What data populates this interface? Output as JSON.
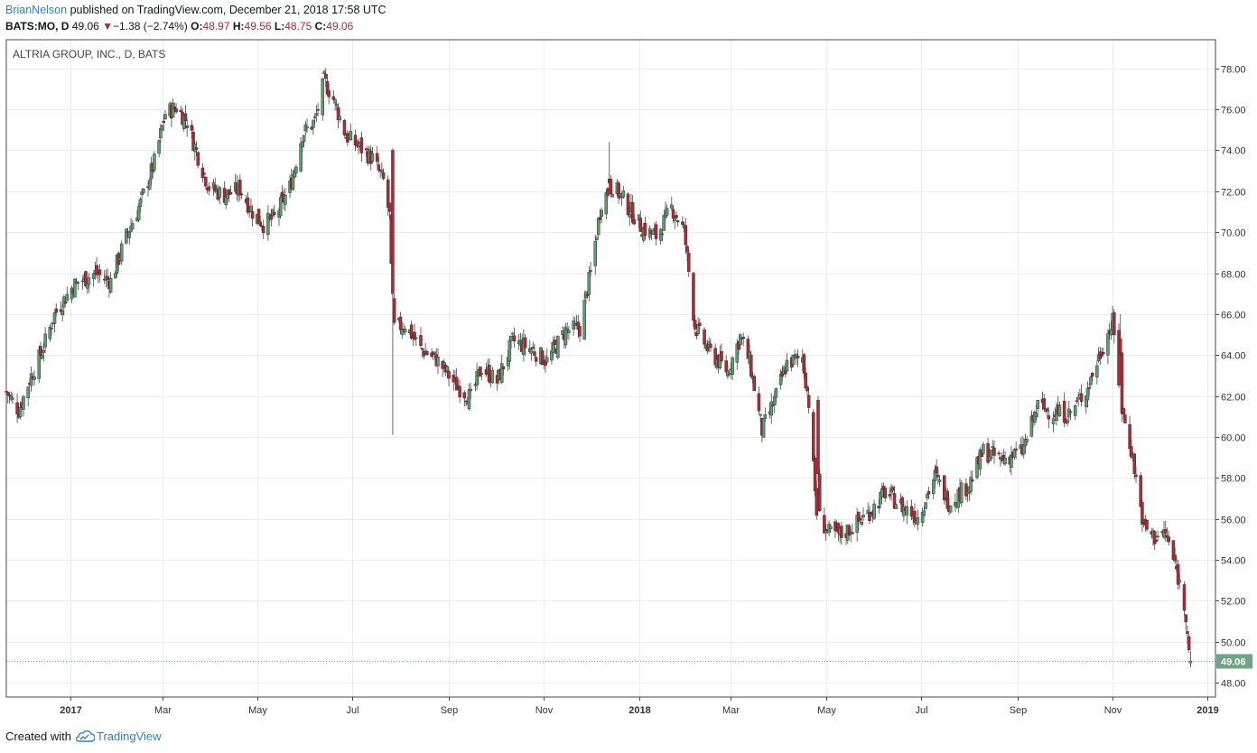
{
  "header": {
    "author": "BrianNelson",
    "published": "published on TradingView.com, December 21, 2018 17:58 UTC"
  },
  "quote": {
    "symbol": "BATS:MO, D",
    "last": "49.06",
    "change": "−1.38 (−2.74%)",
    "open_label": "O:",
    "open": "48.97",
    "high_label": "H:",
    "high": "49.56",
    "low_label": "L:",
    "low": "48.75",
    "close_label": "C:",
    "close": "49.06"
  },
  "footer": {
    "created_with": "Created with",
    "brand": "TradingView"
  },
  "colors": {
    "up": "#5a9e6f",
    "down": "#b22833",
    "wick": "#444444",
    "grid": "#ececec",
    "axis": "#4a4a4a",
    "last_price_tag": "#6ba583"
  },
  "chart_data": {
    "type": "candlestick",
    "title": "ALTRIA GROUP, INC., D, BATS",
    "ylim": [
      47.3,
      79.4
    ],
    "y_ticks": [
      48,
      50,
      52,
      54,
      56,
      58,
      60,
      62,
      64,
      66,
      68,
      70,
      72,
      74,
      76,
      78
    ],
    "x_start": "2016-11-21",
    "x_end": "2019-01-06",
    "x_ticks": [
      {
        "label": "2017",
        "date": "2017-01-01",
        "bold": true
      },
      {
        "label": "Mar",
        "date": "2017-03-01"
      },
      {
        "label": "May",
        "date": "2017-05-01"
      },
      {
        "label": "Jul",
        "date": "2017-07-01"
      },
      {
        "label": "Sep",
        "date": "2017-09-01"
      },
      {
        "label": "Nov",
        "date": "2017-11-01"
      },
      {
        "label": "2018",
        "date": "2018-01-01",
        "bold": true
      },
      {
        "label": "Mar",
        "date": "2018-03-01"
      },
      {
        "label": "May",
        "date": "2018-05-01"
      },
      {
        "label": "Jul",
        "date": "2018-07-01"
      },
      {
        "label": "Sep",
        "date": "2018-09-01"
      },
      {
        "label": "Nov",
        "date": "2018-11-01"
      },
      {
        "label": "2019",
        "date": "2019-01-01",
        "bold": true
      }
    ],
    "last_price": 49.06,
    "price_path": [
      [
        "2016-11-21",
        62.2
      ],
      [
        "2016-11-29",
        61.3
      ],
      [
        "2016-12-07",
        63.0
      ],
      [
        "2016-12-14",
        64.2
      ],
      [
        "2016-12-22",
        66.0
      ],
      [
        "2017-01-03",
        67.4
      ],
      [
        "2017-01-17",
        68.0
      ],
      [
        "2017-01-27",
        67.6
      ],
      [
        "2017-02-06",
        69.8
      ],
      [
        "2017-02-15",
        71.4
      ],
      [
        "2017-02-24",
        73.4
      ],
      [
        "2017-03-03",
        75.8
      ],
      [
        "2017-03-10",
        76.1
      ],
      [
        "2017-03-17",
        75.4
      ],
      [
        "2017-03-24",
        73.7
      ],
      [
        "2017-03-31",
        72.2
      ],
      [
        "2017-04-10",
        71.8
      ],
      [
        "2017-04-20",
        72.1
      ],
      [
        "2017-04-28",
        71.0
      ],
      [
        "2017-05-05",
        70.4
      ],
      [
        "2017-05-12",
        70.7
      ],
      [
        "2017-05-22",
        72.2
      ],
      [
        "2017-05-30",
        74.8
      ],
      [
        "2017-06-07",
        75.4
      ],
      [
        "2017-06-13",
        77.4
      ],
      [
        "2017-06-19",
        76.5
      ],
      [
        "2017-06-27",
        74.7
      ],
      [
        "2017-07-05",
        74.2
      ],
      [
        "2017-07-14",
        73.6
      ],
      [
        "2017-07-21",
        72.5
      ],
      [
        "2017-07-25",
        70.8
      ],
      [
        "2017-07-27",
        65.3
      ],
      [
        "2017-08-04",
        65.5
      ],
      [
        "2017-08-14",
        64.3
      ],
      [
        "2017-08-24",
        63.8
      ],
      [
        "2017-09-05",
        62.6
      ],
      [
        "2017-09-15",
        61.9
      ],
      [
        "2017-09-22",
        63.4
      ],
      [
        "2017-10-02",
        62.7
      ],
      [
        "2017-10-12",
        64.7
      ],
      [
        "2017-10-24",
        64.3
      ],
      [
        "2017-11-03",
        63.7
      ],
      [
        "2017-11-15",
        65.2
      ],
      [
        "2017-11-24",
        65.3
      ],
      [
        "2017-12-01",
        68.0
      ],
      [
        "2017-12-08",
        71.5
      ],
      [
        "2017-12-15",
        72.3
      ],
      [
        "2017-12-22",
        71.6
      ],
      [
        "2018-01-03",
        70.2
      ],
      [
        "2018-01-12",
        69.8
      ],
      [
        "2018-01-22",
        71.2
      ],
      [
        "2018-01-30",
        70.1
      ],
      [
        "2018-02-06",
        65.4
      ],
      [
        "2018-02-15",
        64.2
      ],
      [
        "2018-02-27",
        63.2
      ],
      [
        "2018-03-07",
        64.9
      ],
      [
        "2018-03-13",
        63.7
      ],
      [
        "2018-03-21",
        60.3
      ],
      [
        "2018-03-29",
        61.8
      ],
      [
        "2018-04-06",
        63.6
      ],
      [
        "2018-04-16",
        63.9
      ],
      [
        "2018-04-20",
        61.7
      ],
      [
        "2018-04-25",
        56.3
      ],
      [
        "2018-05-03",
        55.3
      ],
      [
        "2018-05-11",
        55.2
      ],
      [
        "2018-05-21",
        55.8
      ],
      [
        "2018-05-31",
        56.5
      ],
      [
        "2018-06-08",
        57.3
      ],
      [
        "2018-06-19",
        56.6
      ],
      [
        "2018-06-29",
        56.1
      ],
      [
        "2018-07-10",
        58.1
      ],
      [
        "2018-07-19",
        56.8
      ],
      [
        "2018-08-01",
        57.7
      ],
      [
        "2018-08-10",
        59.3
      ],
      [
        "2018-08-22",
        58.9
      ],
      [
        "2018-09-04",
        59.3
      ],
      [
        "2018-09-14",
        61.5
      ],
      [
        "2018-09-24",
        61.2
      ],
      [
        "2018-10-04",
        61.1
      ],
      [
        "2018-10-16",
        62.4
      ],
      [
        "2018-10-25",
        64.3
      ],
      [
        "2018-11-01",
        65.6
      ],
      [
        "2018-11-07",
        61.3
      ],
      [
        "2018-11-13",
        59.4
      ],
      [
        "2018-11-21",
        55.6
      ],
      [
        "2018-11-28",
        55.1
      ],
      [
        "2018-12-05",
        55.3
      ],
      [
        "2018-12-12",
        53.5
      ],
      [
        "2018-12-18",
        51.4
      ],
      [
        "2018-12-21",
        49.06
      ]
    ],
    "spikes": [
      {
        "date": "2017-07-27",
        "open": 74.0,
        "high": 74.1,
        "low": 60.1,
        "close": 67.0
      },
      {
        "date": "2017-12-13",
        "open": 72.6,
        "high": 74.4,
        "low": 72.1,
        "close": 72.4
      },
      {
        "date": "2018-04-26",
        "open": 61.8,
        "high": 62.0,
        "low": 57.8,
        "close": 58.2
      },
      {
        "date": "2018-11-06",
        "open": 64.8,
        "high": 66.0,
        "low": 63.9,
        "close": 64.1
      },
      {
        "date": "2018-12-19",
        "open": 50.5,
        "high": 50.8,
        "low": 49.9,
        "close": 50.4
      },
      {
        "date": "2018-12-21",
        "open": 48.97,
        "high": 49.56,
        "low": 48.75,
        "close": 49.06
      }
    ]
  }
}
